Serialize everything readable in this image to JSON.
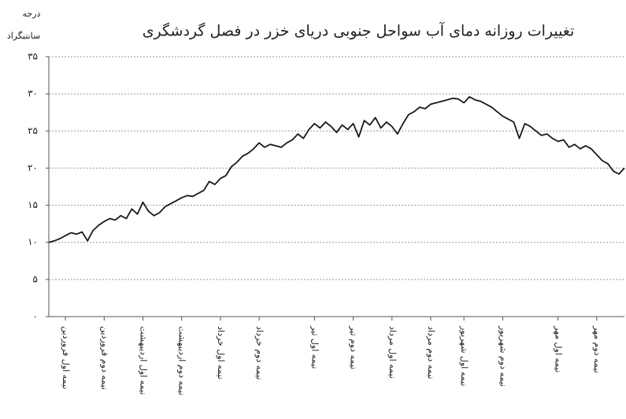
{
  "chart_data": {
    "type": "line",
    "title": "تغییرات روزانه دمای آب سواحل جنوبی دریای خزر در فصل گردشگری",
    "ylabel": [
      "درجه",
      "سانتیگراد"
    ],
    "categories": [
      null,
      null,
      null,
      "نیمه اول فروردین",
      null,
      null,
      null,
      null,
      null,
      null,
      "نیمه دوم فروردین",
      null,
      null,
      null,
      null,
      null,
      null,
      "نیمه اول اردیبهشت",
      null,
      null,
      null,
      null,
      null,
      null,
      "نیمه دوم اردیبهشت",
      null,
      null,
      null,
      null,
      null,
      null,
      "نیمه اول خرداد",
      null,
      null,
      null,
      null,
      null,
      null,
      "نیمه دوم خرداد",
      null,
      null,
      null,
      null,
      null,
      null,
      null,
      null,
      null,
      "نیمه اول تیر",
      null,
      null,
      null,
      null,
      null,
      null,
      "نیمه دوم تیر",
      null,
      null,
      null,
      null,
      null,
      null,
      "نیمه اول مرداد",
      null,
      null,
      null,
      null,
      null,
      null,
      "نیمه دوم مرداد",
      null,
      null,
      null,
      null,
      null,
      "نیمه اول شهریور",
      null,
      null,
      null,
      null,
      null,
      null,
      "نیمه دوم شهریور",
      null,
      null,
      null,
      null,
      null,
      null,
      null,
      null,
      null,
      "نیمه اول مهر",
      null,
      null,
      null,
      null,
      null,
      null,
      "نیمه دوم مهر",
      null,
      null,
      null,
      null,
      null
    ],
    "series": [
      {
        "name": "دمای آب",
        "color": "#1a1a1a",
        "values": [
          10.0,
          10.2,
          10.5,
          10.9,
          11.3,
          11.1,
          11.4,
          10.2,
          11.6,
          12.3,
          12.8,
          13.2,
          13.0,
          13.6,
          13.2,
          14.5,
          13.8,
          15.4,
          14.2,
          13.6,
          14.0,
          14.8,
          15.2,
          15.6,
          16.0,
          16.3,
          16.2,
          16.6,
          17.0,
          18.2,
          17.8,
          18.6,
          19.0,
          20.2,
          20.8,
          21.6,
          22.0,
          22.6,
          23.4,
          22.8,
          23.2,
          23.0,
          22.8,
          23.4,
          23.8,
          24.6,
          24.0,
          25.2,
          26.0,
          25.4,
          26.2,
          25.6,
          24.8,
          25.8,
          25.2,
          26.0,
          24.2,
          26.4,
          25.8,
          26.8,
          25.4,
          26.2,
          25.6,
          24.6,
          26.0,
          27.2,
          27.6,
          28.2,
          28.0,
          28.6,
          28.8,
          29.0,
          29.2,
          29.4,
          29.3,
          28.8,
          29.6,
          29.2,
          29.0,
          28.6,
          28.2,
          27.6,
          27.0,
          26.6,
          26.2,
          24.0,
          26.0,
          25.6,
          25.0,
          24.4,
          24.6,
          24.0,
          23.6,
          23.8,
          22.8,
          23.2,
          22.6,
          23.0,
          22.6,
          21.8,
          21.0,
          20.6,
          19.6,
          19.2,
          20.0
        ]
      }
    ],
    "ylim": [
      0,
      35
    ],
    "yticks": [
      {
        "value": 0,
        "label": "۰"
      },
      {
        "value": 5,
        "label": "۵"
      },
      {
        "value": 10,
        "label": "۱۰"
      },
      {
        "value": 15,
        "label": "۱۵"
      },
      {
        "value": 20,
        "label": "۲۰"
      },
      {
        "value": 25,
        "label": "۲۵"
      },
      {
        "value": 30,
        "label": "۳۰"
      },
      {
        "value": 35,
        "label": "۳۵"
      }
    ],
    "grid": true
  }
}
